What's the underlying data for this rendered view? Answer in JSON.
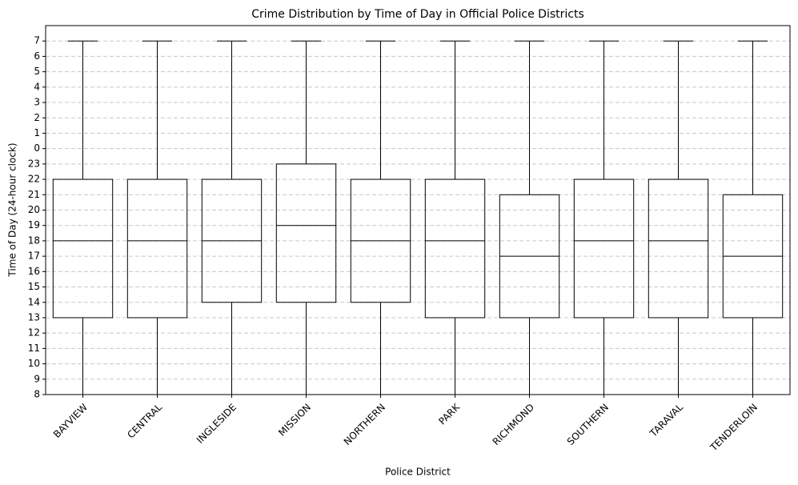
{
  "chart_data": {
    "type": "box",
    "title": "Crime Distribution by Time of Day in Official Police Districts",
    "x_label": "Police District",
    "y_label": "Time of Day (24-hour clock)",
    "categories": [
      "BAYVIEW",
      "CENTRAL",
      "INGLESIDE",
      "MISSION",
      "NORTHERN",
      "PARK",
      "RICHMOND",
      "SOUTHERN",
      "TARAVAL",
      "TENDERLOIN"
    ],
    "whisker_low": [
      8,
      8,
      8,
      8,
      8,
      8,
      8,
      8,
      8,
      8
    ],
    "q1": [
      13,
      13,
      14,
      14,
      14,
      13,
      13,
      13,
      13,
      13
    ],
    "median": [
      18,
      18,
      18,
      19,
      18,
      18,
      17,
      18,
      18,
      17
    ],
    "q3": [
      22,
      22,
      22,
      23,
      22,
      22,
      21,
      22,
      22,
      21
    ],
    "whisker_high": [
      31,
      31,
      31,
      31,
      31,
      31,
      31,
      31,
      31,
      31
    ],
    "color": "#000000",
    "ylim": [
      8,
      32
    ],
    "yticks": [
      8,
      9,
      10,
      11,
      12,
      13,
      14,
      15,
      16,
      17,
      18,
      19,
      20,
      21,
      22,
      23,
      {
        "value": 24,
        "label": "0"
      },
      {
        "value": 25,
        "label": "1"
      },
      {
        "value": 26,
        "label": "2"
      },
      {
        "value": 27,
        "label": "3"
      },
      {
        "value": 28,
        "label": "4"
      },
      {
        "value": 29,
        "label": "5"
      },
      {
        "value": 30,
        "label": "6"
      },
      {
        "value": 31,
        "label": "7"
      }
    ],
    "grid": true
  }
}
